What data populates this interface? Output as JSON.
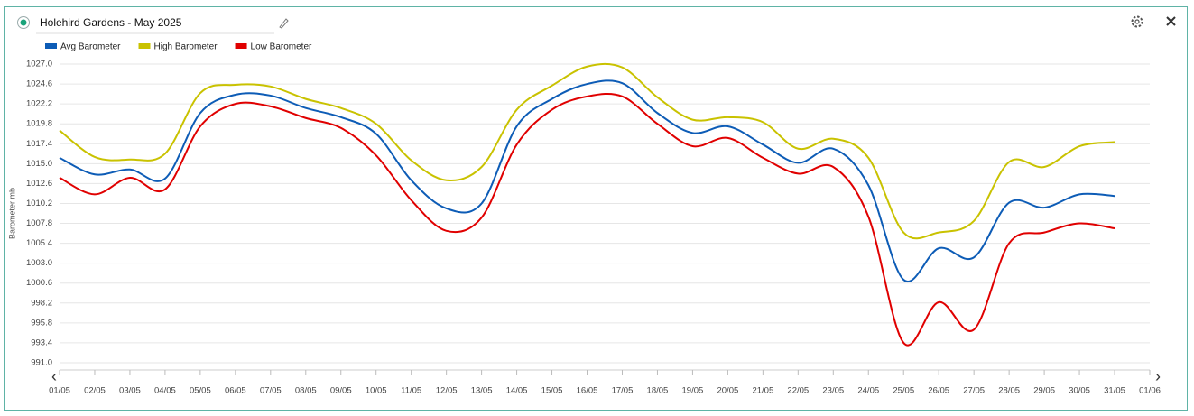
{
  "chart_data": {
    "type": "line",
    "title": "Holehird Gardens - May 2025",
    "y_label": "Barometer mb",
    "categories": [
      "01/05",
      "02/05",
      "03/05",
      "04/05",
      "05/05",
      "06/05",
      "07/05",
      "08/05",
      "09/05",
      "10/05",
      "11/05",
      "12/05",
      "13/05",
      "14/05",
      "15/05",
      "16/05",
      "17/05",
      "18/05",
      "19/05",
      "20/05",
      "21/05",
      "22/05",
      "23/05",
      "24/05",
      "25/05",
      "26/05",
      "27/05",
      "28/05",
      "29/05",
      "30/05",
      "31/05",
      "01/06"
    ],
    "series": [
      {
        "name": "Avg Barometer",
        "color": "#0d5cb6",
        "values": [
          1015.7,
          1013.7,
          1014.3,
          1013.2,
          1021.1,
          1023.3,
          1023.2,
          1021.7,
          1020.6,
          1018.6,
          1013.0,
          1009.6,
          1010.2,
          1019.5,
          1022.8,
          1024.6,
          1024.7,
          1021.1,
          1018.7,
          1019.5,
          1017.3,
          1015.1,
          1016.8,
          1012.4,
          1001.0,
          1004.8,
          1003.7,
          1010.3,
          1009.7,
          1011.3,
          1011.1,
          null
        ]
      },
      {
        "name": "High Barometer",
        "color": "#c9c200",
        "values": [
          1019.0,
          1015.8,
          1015.5,
          1016.2,
          1023.5,
          1024.5,
          1024.3,
          1022.8,
          1021.7,
          1019.8,
          1015.4,
          1013.0,
          1014.6,
          1021.5,
          1024.4,
          1026.7,
          1026.6,
          1023.0,
          1020.3,
          1020.6,
          1020.0,
          1016.8,
          1018.0,
          1015.7,
          1006.7,
          1006.7,
          1008.1,
          1015.2,
          1014.6,
          1017.1,
          1017.6,
          null
        ]
      },
      {
        "name": "Low Barometer",
        "color": "#e00000",
        "values": [
          1013.3,
          1011.3,
          1013.3,
          1011.9,
          1019.5,
          1022.2,
          1021.9,
          1020.5,
          1019.3,
          1016.0,
          1010.6,
          1006.9,
          1008.5,
          1017.3,
          1021.5,
          1023.1,
          1023.1,
          1019.8,
          1017.1,
          1018.1,
          1015.7,
          1013.8,
          1014.6,
          1008.6,
          993.4,
          998.3,
          995.0,
          1005.4,
          1006.7,
          1007.8,
          1007.2,
          null
        ]
      }
    ],
    "ylim": [
      991.0,
      1027.0
    ],
    "yticks": [
      {
        "value": 991,
        "label": "991.0"
      },
      993.4,
      995.8,
      998.2,
      1000.6,
      {
        "value": 1003,
        "label": "1003.0"
      },
      1005.4,
      1007.8,
      1010.2,
      1012.6,
      {
        "value": 1015,
        "label": "1015.0"
      },
      1017.4,
      1019.8,
      1022.2,
      1024.6,
      {
        "value": 1027,
        "label": "1027.0"
      }
    ],
    "grid": true,
    "legend": "top-left"
  }
}
